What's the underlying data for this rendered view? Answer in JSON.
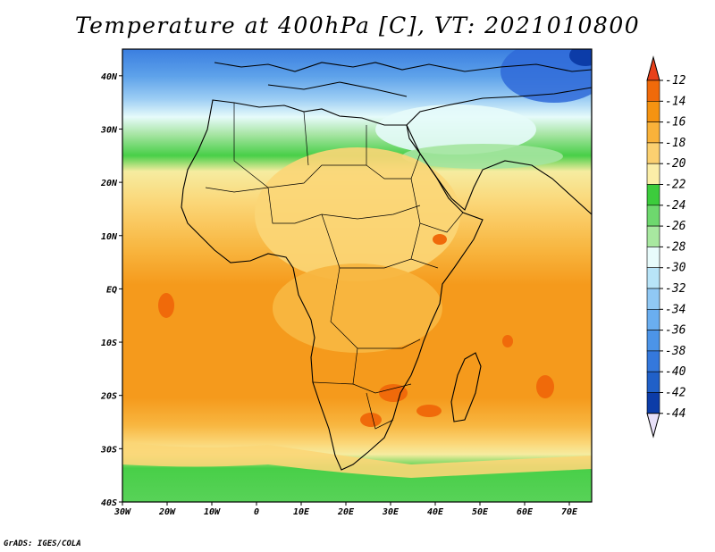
{
  "title": "Temperature at 400hPa [C], VT: 2021010800",
  "credit": "GrADS: IGES/COLA",
  "map": {
    "variable": "Temperature at 400hPa",
    "unit": "C",
    "valid_time": "2021010800",
    "lon_range": [
      -30,
      75
    ],
    "lat_range": [
      -40,
      45
    ],
    "lon_ticks": [
      "30W",
      "20W",
      "10W",
      "0",
      "10E",
      "20E",
      "30E",
      "40E",
      "50E",
      "60E",
      "70E"
    ],
    "lat_ticks": [
      "40N",
      "30N",
      "20N",
      "10N",
      "EQ",
      "10S",
      "20S",
      "30S",
      "40S"
    ]
  },
  "colorbar": {
    "labels": [
      "-12",
      "-14",
      "-16",
      "-18",
      "-20",
      "-22",
      "-24",
      "-26",
      "-28",
      "-30",
      "-32",
      "-34",
      "-36",
      "-38",
      "-40",
      "-42",
      "-44"
    ],
    "top_color": "#e8401a",
    "colors": [
      "#f06a0a",
      "#f59311",
      "#f9b23a",
      "#fbd070",
      "#fbeea8",
      "#3ccc3c",
      "#6ed86e",
      "#a8e8a0",
      "#e8fbfb",
      "#b8e4f8",
      "#90c8f4",
      "#6aaef0",
      "#4c94e8",
      "#3478dc",
      "#2060c8",
      "#0c3ca8"
    ],
    "bottom_color": "#e8e0f8"
  },
  "features": {
    "coastline_color": "#000000",
    "warm_max_color": "#f06a0a",
    "cold_pool_color": "#1a4cc8"
  }
}
